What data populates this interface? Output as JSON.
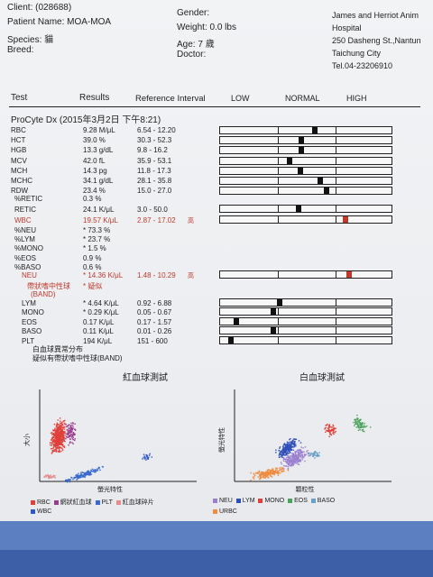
{
  "header": {
    "client": "Client:  (028688)",
    "patient": "Patient Name:  MOA-MOA",
    "species": "Species: 貓",
    "breed": "Breed:",
    "gender": "Gender:",
    "weight": "Weight:  0.0 lbs",
    "age": "Age:  7 歲",
    "doctor": "Doctor:",
    "hospital_line1": "James and Herriot Anim",
    "hospital_line2": "Hospital",
    "address": "250 Dasheng St.,Nantun",
    "city": "Taichung City",
    "tel": "Tel.04-23206910"
  },
  "columns": {
    "test": "Test",
    "results": "Results",
    "ref": "Reference Interval",
    "low": "LOW",
    "normal": "NORMAL",
    "high": "HIGH"
  },
  "run_title": "ProCyte Dx (2015年3月2日 下午8:21)",
  "rbc_panel": [
    {
      "name": "RBC",
      "result": "9.28 M/μL",
      "ref": "6.54 - 12.20",
      "level": 0.55
    },
    {
      "name": "HCT",
      "result": "39.0 %",
      "ref": "30.3 - 52.3",
      "level": 0.47
    },
    {
      "name": "HGB",
      "result": "13.3 g/dL",
      "ref": "9.8 - 16.2",
      "level": 0.47
    },
    {
      "name": "MCV",
      "result": "42.0 fL",
      "ref": "35.9 - 53.1",
      "level": 0.4
    },
    {
      "name": "MCH",
      "result": "14.3 pg",
      "ref": "11.8 - 17.3",
      "level": 0.46
    },
    {
      "name": "MCHC",
      "result": "34.1 g/dL",
      "ref": "28.1 - 35.8",
      "level": 0.58
    },
    {
      "name": "RDW",
      "result": "23.4 %",
      "ref": "15.0 - 27.0",
      "level": 0.62
    }
  ],
  "retic_pct": {
    "name": "%RETIC",
    "result": "0.3 %"
  },
  "retic": {
    "name": "RETIC",
    "result": "24.1 K/μL",
    "ref": "3.0 - 50.0",
    "level": 0.45
  },
  "wbc": {
    "name": "WBC",
    "result": "19.57 K/μL",
    "ref": "2.87 - 17.02",
    "flag": "高"
  },
  "wbc_diff_pct": [
    {
      "name": "%NEU",
      "result": "* 73.3 %"
    },
    {
      "name": "%LYM",
      "result": "* 23.7 %"
    },
    {
      "name": "%MONO",
      "result": "* 1.5 %"
    },
    {
      "name": "%EOS",
      "result": "0.9 %"
    },
    {
      "name": "%BASO",
      "result": "0.6 %"
    }
  ],
  "neu": {
    "name": "NEU",
    "result": "* 14.36 K/μL",
    "ref": "1.48 - 10.29",
    "flag": "高"
  },
  "band": {
    "name1": "帶狀嗜中性球",
    "name2": "(BAND)",
    "result": "* 疑似"
  },
  "wbc_abs": [
    {
      "name": "LYM",
      "result": "* 4.64 K/μL",
      "ref": "0.92 - 6.88",
      "level": 0.34
    },
    {
      "name": "MONO",
      "result": "* 0.29 K/μL",
      "ref": "0.05 - 0.67",
      "level": 0.3
    },
    {
      "name": "EOS",
      "result": "0.17 K/μL",
      "ref": "0.17 - 1.57",
      "level": 0.08
    },
    {
      "name": "BASO",
      "result": "0.11 K/μL",
      "ref": "0.01 - 0.26",
      "level": 0.3
    },
    {
      "name": "PLT",
      "result": "194 K/μL",
      "ref": "151 - 600",
      "level": 0.05
    }
  ],
  "notes": [
    "白血球異常分布",
    "疑似有帶狀嗜中性球(BAND)"
  ],
  "plot_left": {
    "title": "紅血球測試",
    "ylabel": "大小",
    "xlabel": "螢光特性",
    "legend": [
      "RBC",
      "網狀紅血球",
      "PLT",
      "紅血球碎片",
      "WBC"
    ],
    "colors": {
      "RBC": "#e0403a",
      "RETIC": "#9a3b8c",
      "PLT": "#3a6ad0",
      "FRAG": "#e88a8a",
      "WBC": "#3158c8"
    }
  },
  "plot_right": {
    "title": "白血球測試",
    "ylabel": "螢光特性",
    "xlabel": "顆粒性",
    "legend": [
      "NEU",
      "LYM",
      "MONO",
      "EOS",
      "BASO",
      "URBC"
    ],
    "colors": {
      "NEU": "#9a7fd0",
      "LYM": "#2f4fb8",
      "MONO": "#e0403a",
      "EOS": "#4aa35a",
      "BASO": "#6aa0c8",
      "URBC": "#f08a3c"
    }
  }
}
